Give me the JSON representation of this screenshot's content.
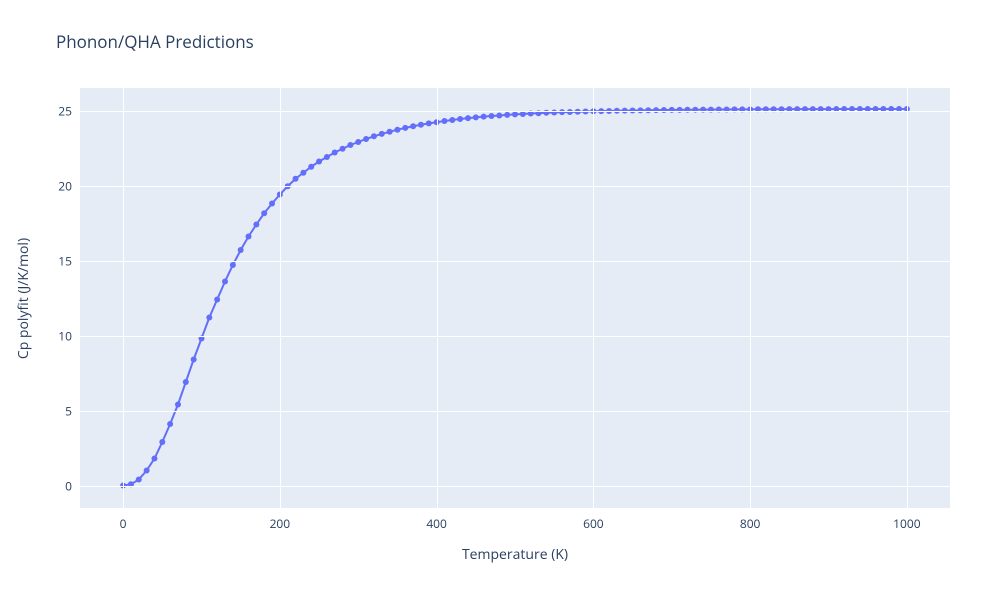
{
  "title": "Phonon/QHA Predictions",
  "xlabel": "Temperature (K)",
  "ylabel": "Cp polyfit (J/K/mol)",
  "chart": {
    "type": "line+markers",
    "background_color": "#ffffff",
    "plot_bg_color": "#e5ecf6",
    "grid_color": "#ffffff",
    "line_color": "#636efa",
    "marker_color": "#636efa",
    "marker_size": 6,
    "line_width": 2,
    "title_fontsize": 17,
    "label_fontsize": 14,
    "tick_fontsize": 12,
    "text_color": "#2a3f5f",
    "xlim": [
      -55,
      1055
    ],
    "ylim": [
      -1.5,
      26.5
    ],
    "xticks": [
      0,
      200,
      400,
      600,
      800,
      1000
    ],
    "yticks": [
      0,
      5,
      10,
      15,
      20,
      25
    ],
    "x": [
      0,
      10,
      20,
      30,
      40,
      50,
      60,
      70,
      80,
      90,
      100,
      110,
      120,
      130,
      140,
      150,
      160,
      170,
      180,
      190,
      200,
      210,
      220,
      230,
      240,
      250,
      260,
      270,
      280,
      290,
      300,
      310,
      320,
      330,
      340,
      350,
      360,
      370,
      380,
      390,
      400,
      410,
      420,
      430,
      440,
      450,
      460,
      470,
      480,
      490,
      500,
      510,
      520,
      530,
      540,
      550,
      560,
      570,
      580,
      590,
      600,
      610,
      620,
      630,
      640,
      650,
      660,
      670,
      680,
      690,
      700,
      710,
      720,
      730,
      740,
      750,
      760,
      770,
      780,
      790,
      800,
      810,
      820,
      830,
      840,
      850,
      860,
      870,
      880,
      890,
      900,
      910,
      920,
      930,
      940,
      950,
      960,
      970,
      980,
      990,
      1000
    ],
    "y": [
      0,
      0.08,
      0.4,
      1.0,
      1.8,
      2.9,
      4.1,
      5.4,
      6.9,
      8.4,
      9.8,
      11.2,
      12.4,
      13.6,
      14.7,
      15.7,
      16.6,
      17.4,
      18.15,
      18.8,
      19.4,
      19.95,
      20.45,
      20.85,
      21.25,
      21.6,
      21.9,
      22.2,
      22.45,
      22.7,
      22.9,
      23.1,
      23.28,
      23.44,
      23.58,
      23.72,
      23.84,
      23.95,
      24.05,
      24.14,
      24.22,
      24.3,
      24.37,
      24.43,
      24.49,
      24.54,
      24.59,
      24.63,
      24.67,
      24.71,
      24.74,
      24.77,
      24.8,
      24.82,
      24.85,
      24.87,
      24.89,
      24.9,
      24.92,
      24.93,
      24.95,
      24.96,
      24.97,
      24.98,
      24.99,
      25,
      25.01,
      25.02,
      25.026,
      25.03,
      25.038,
      25.044,
      25.05,
      25.054,
      25.058,
      25.062,
      25.066,
      25.07,
      25.073,
      25.076,
      25.078,
      25.08,
      25.082,
      25.084,
      25.086,
      25.088,
      25.09,
      25.091,
      25.092,
      25.094,
      25.095,
      25.096,
      25.097,
      25.098,
      25.099,
      25.1,
      25.1,
      25.1,
      25.1,
      25.1,
      25.1
    ]
  }
}
